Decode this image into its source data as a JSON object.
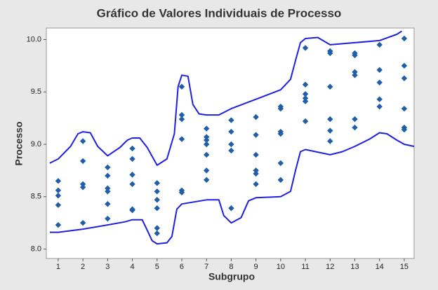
{
  "chart_data": {
    "type": "scatter",
    "title": "Gráfico de Valores Individuais de Processo",
    "x_label": "Subgrupo",
    "y_label": "Processo",
    "xlim": [
      0.52,
      15.4
    ],
    "ylim": [
      7.91,
      10.11
    ],
    "xticks": [
      1,
      2,
      3,
      4,
      5,
      6,
      7,
      8,
      9,
      10,
      11,
      12,
      13,
      14,
      15
    ],
    "yticks": [
      {
        "value": 8,
        "label": "8.0"
      },
      8.5,
      {
        "value": 9,
        "label": "9.0"
      },
      9.5,
      {
        "value": 10,
        "label": "10.0"
      }
    ],
    "color": "#1f5ea8",
    "line_color": "#2020e0",
    "groups": [
      [
        8.65,
        8.56,
        8.51,
        8.42,
        8.23
      ],
      [
        9.03,
        8.84,
        8.62,
        8.59,
        8.25
      ],
      [
        8.78,
        8.7,
        8.58,
        8.55,
        8.43,
        8.29
      ],
      [
        8.96,
        8.86,
        8.71,
        8.62,
        8.38,
        8.37
      ],
      [
        8.63,
        8.55,
        8.47,
        8.39,
        8.2,
        8.15
      ],
      [
        9.55,
        9.28,
        9.24,
        9.05,
        8.56,
        8.54
      ],
      [
        9.15,
        9.07,
        9.04,
        9.0,
        8.9,
        8.75,
        8.66
      ],
      [
        9.23,
        9.12,
        9.0,
        8.94,
        8.39
      ],
      [
        9.26,
        9.09,
        8.9,
        8.75,
        8.72,
        8.62
      ],
      [
        9.36,
        9.34,
        9.12,
        9.1,
        8.82,
        8.66
      ],
      [
        9.92,
        9.57,
        9.48,
        9.44,
        9.41,
        9.22
      ],
      [
        9.89,
        9.87,
        9.55,
        9.24,
        9.13,
        9.03
      ],
      [
        9.87,
        9.85,
        9.69,
        9.66,
        9.24,
        9.16
      ],
      [
        9.95,
        9.71,
        9.59,
        9.43,
        9.36
      ],
      [
        10.01,
        9.75,
        9.63,
        9.34,
        9.16,
        9.14
      ]
    ],
    "envelope": [
      {
        "x": [
          0.66,
          1,
          1.5,
          1.8,
          2,
          2.3,
          2.6,
          3,
          3.5,
          3.8,
          4,
          4.3,
          4.6,
          5,
          5.4,
          5.7,
          5.85,
          6,
          6.25,
          6.45,
          6.7,
          7,
          7.5,
          8,
          9,
          10,
          10.4,
          10.6,
          10.8,
          11,
          11.5,
          12,
          12.5,
          13,
          14,
          14.7,
          14.9
        ],
        "values": [
          8.82,
          8.86,
          8.98,
          9.1,
          9.12,
          9.11,
          8.98,
          8.89,
          8.97,
          9.04,
          9.06,
          9.06,
          8.97,
          8.8,
          8.86,
          9.1,
          9.55,
          9.66,
          9.65,
          9.38,
          9.29,
          9.28,
          9.28,
          9.34,
          9.43,
          9.52,
          9.62,
          9.8,
          9.97,
          10.01,
          10.02,
          9.95,
          9.96,
          9.97,
          9.99,
          10.05,
          10.08
        ]
      },
      {
        "x": [
          0.66,
          1,
          2,
          3,
          3.7,
          4,
          4.4,
          4.6,
          4.8,
          5,
          5.4,
          5.6,
          5.8,
          6,
          7,
          7.5,
          7.7,
          8,
          8.4,
          8.7,
          9,
          10,
          10.4,
          10.6,
          10.8,
          11,
          12,
          12.5,
          13,
          13.6,
          14,
          14.3,
          14.7,
          15,
          15.4
        ],
        "values": [
          8.16,
          8.16,
          8.19,
          8.23,
          8.26,
          8.28,
          8.28,
          8.18,
          8.08,
          8.05,
          8.06,
          8.12,
          8.38,
          8.43,
          8.47,
          8.47,
          8.32,
          8.25,
          8.3,
          8.46,
          8.49,
          8.5,
          8.55,
          8.75,
          8.93,
          8.95,
          8.9,
          8.93,
          8.98,
          9.05,
          9.11,
          9.1,
          9.04,
          9.0,
          8.98
        ]
      }
    ]
  }
}
